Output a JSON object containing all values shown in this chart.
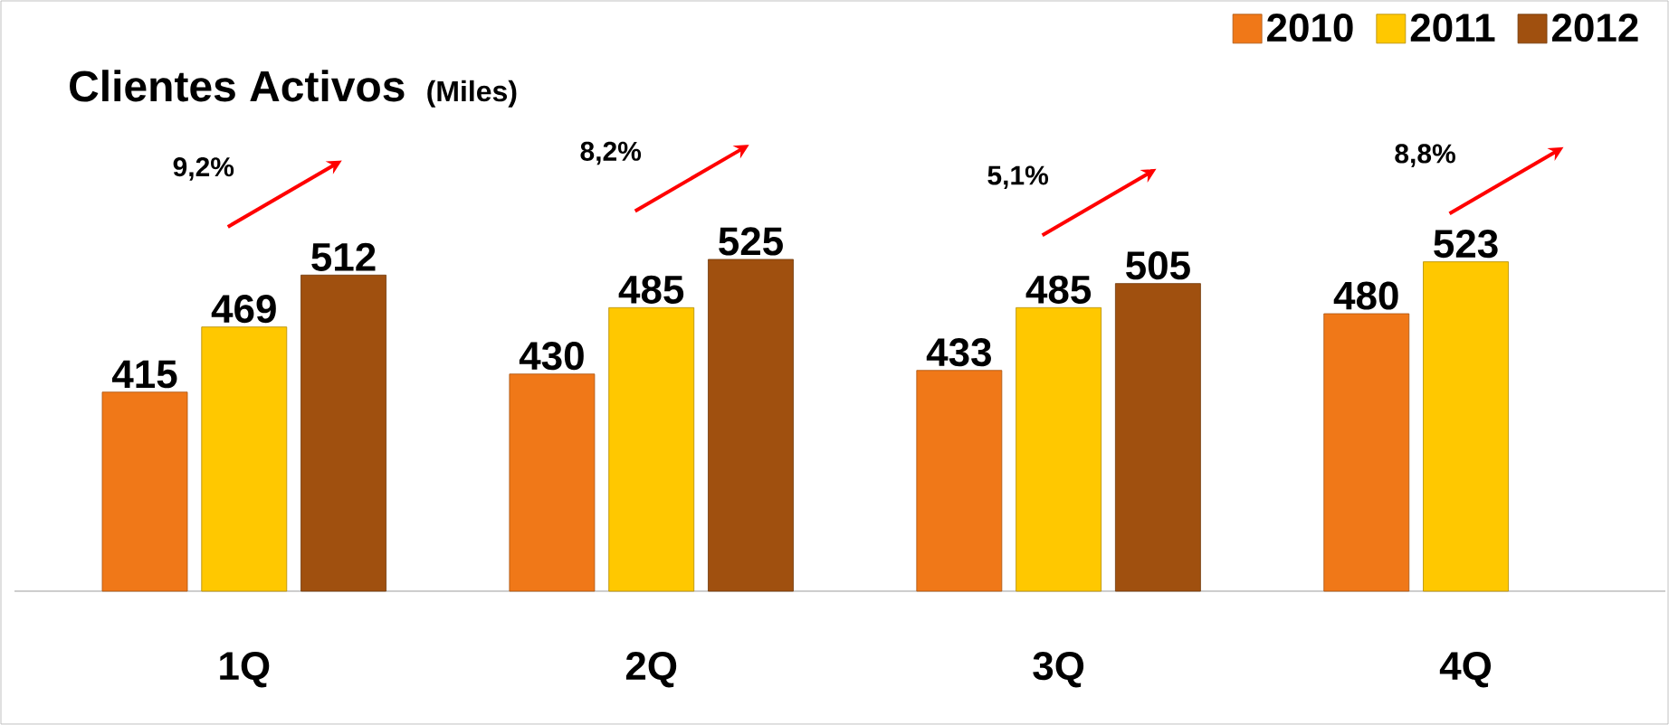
{
  "chart_data": {
    "type": "bar",
    "title": "Clientes Activos",
    "subtitle": "(Miles)",
    "categories": [
      "1Q",
      "2Q",
      "3Q",
      "4Q"
    ],
    "series": [
      {
        "name": "2010",
        "color": "#f07818",
        "values": [
          415,
          430,
          433,
          480
        ]
      },
      {
        "name": "2011",
        "color": "#ffc800",
        "values": [
          469,
          485,
          485,
          523
        ]
      },
      {
        "name": "2012",
        "color": "#a0500f",
        "values": [
          512,
          525,
          505,
          null
        ]
      }
    ],
    "ylim": [
      250,
      740
    ],
    "data_labels": true,
    "legend": "top right",
    "annotations": [
      "9,2%",
      "8,2%",
      "5,1%",
      "8,8%"
    ]
  }
}
